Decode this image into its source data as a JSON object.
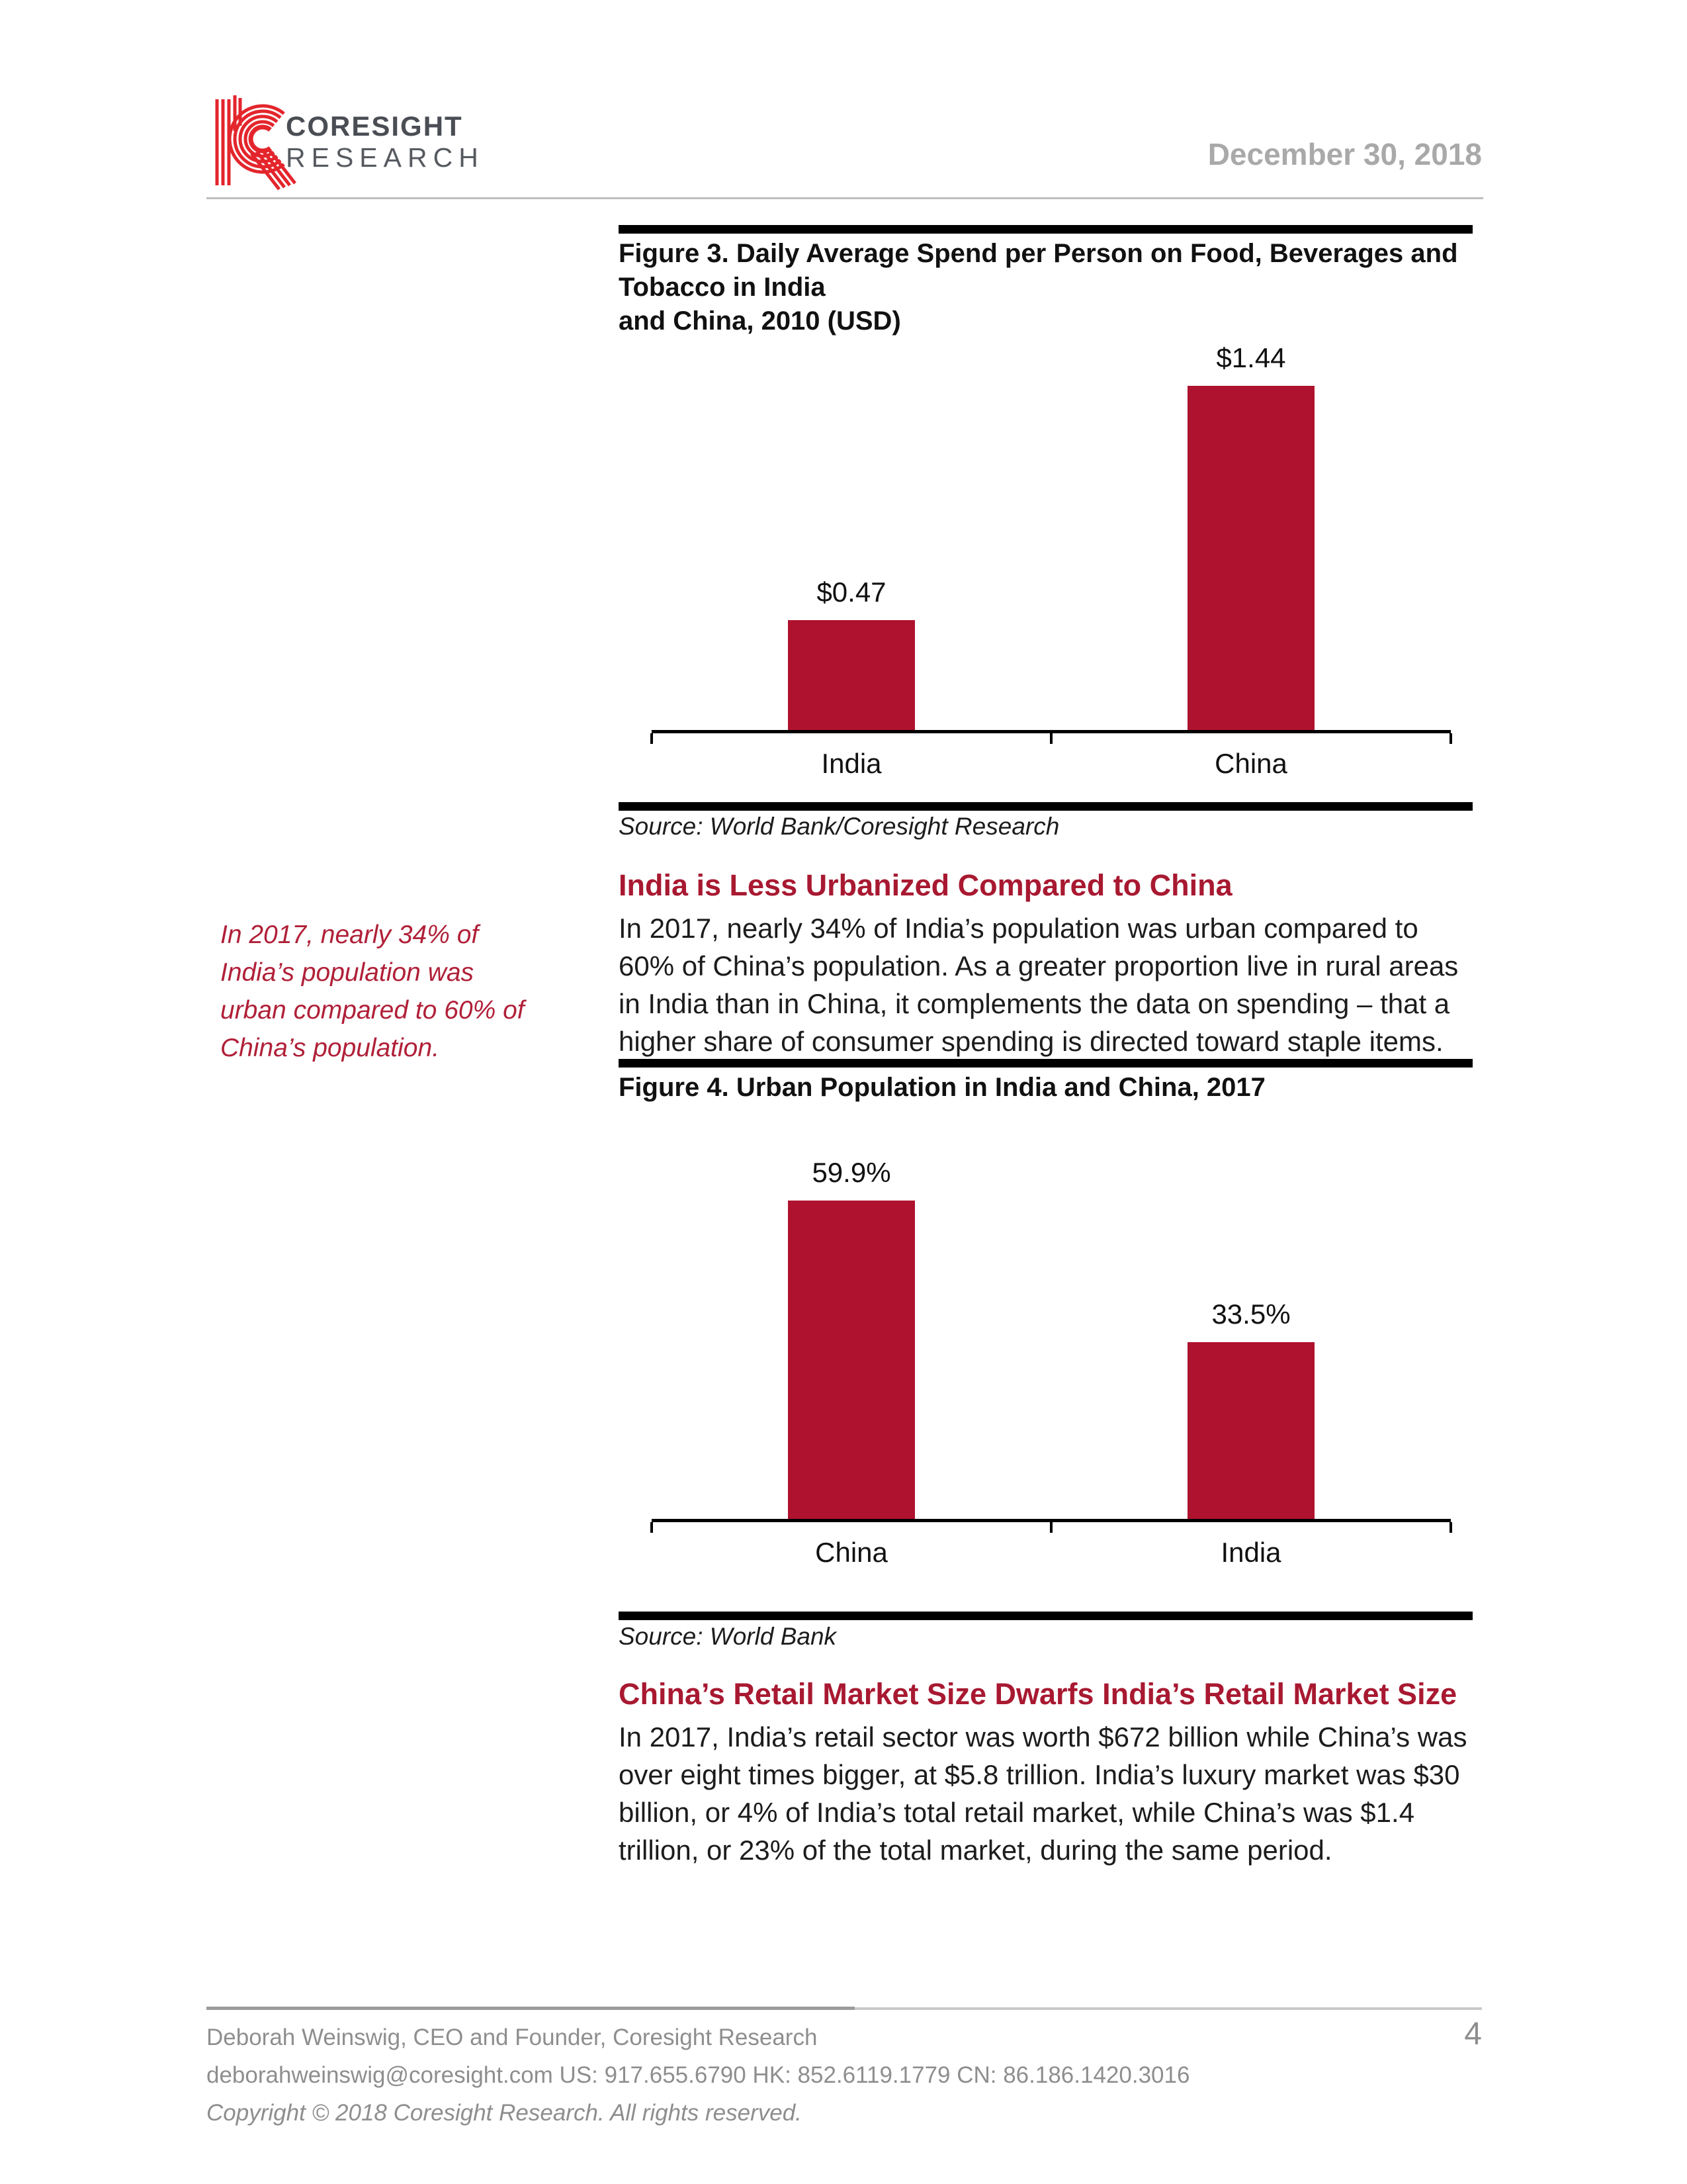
{
  "header": {
    "brand_line1": "CORESIGHT",
    "brand_line2": "RESEARCH",
    "date": "December 30, 2018"
  },
  "figure3": {
    "title_line1": "Figure 3. Daily Average Spend per Person on Food, Beverages and Tobacco in India",
    "title_line2": "and China, 2010  (USD)",
    "source": "Source: World Bank/Coresight Research"
  },
  "figure4": {
    "title": "Figure 4. Urban Population in India and China, 2017",
    "source": "Source: World Bank"
  },
  "chart_data": [
    {
      "type": "bar",
      "figure": "Figure 3",
      "title": "Daily Average Spend per Person on Food, Beverages and Tobacco in India and China, 2010 (USD)",
      "categories": [
        "India",
        "China"
      ],
      "values": [
        0.47,
        1.44
      ],
      "value_labels": [
        "$0.47",
        "$1.44"
      ],
      "unit": "USD per day",
      "ylim": [
        0,
        1.75
      ],
      "grid": false,
      "legend": "none",
      "bar_color": "#af122e",
      "source": "World Bank/Coresight Research"
    },
    {
      "type": "bar",
      "figure": "Figure 4",
      "title": "Urban Population in India and China, 2017",
      "categories": [
        "China",
        "India"
      ],
      "values": [
        59.9,
        33.5
      ],
      "value_labels": [
        "59.9%",
        "33.5%"
      ],
      "unit": "percent of population",
      "ylim": [
        0,
        74
      ],
      "grid": false,
      "legend": "none",
      "bar_color": "#af122e",
      "source": "World Bank"
    }
  ],
  "sections": [
    {
      "heading": "India is Less Urbanized Compared to China",
      "body": "In 2017, nearly 34% of India’s population was urban compared to 60% of China’s population. As a greater proportion live in rural areas in India than in China, it complements the data on spending – that a higher share of consumer spending is directed toward staple items."
    },
    {
      "heading": "China’s Retail Market Size Dwarfs India’s Retail Market Size",
      "body": "In 2017, India’s retail sector was worth $672 billion while China’s was over eight times bigger, at $5.8 trillion. India’s luxury market was $30 billion, or 4% of India’s total retail market, while China’s was $1.4 trillion, or 23% of the total market, during the same period."
    }
  ],
  "callout": "In 2017, nearly 34% of India’s population was urban compared to 60% of China’s population.",
  "footer": {
    "line1": "Deborah Weinswig, CEO and Founder, Coresight Research",
    "line2": "deborahweinswig@coresight.com US: 917.655.6790 HK: 852.6119.1779 CN: 86.186.1420.3016",
    "line3": "Copyright © 2018 Coresight Research. All rights reserved.",
    "page_number": "4"
  },
  "colors": {
    "accent_red": "#a81931",
    "bar_red": "#af122e",
    "logo_red": "#e4252c",
    "brand_gray": "#4a4e54",
    "date_gray": "#a9a9a9",
    "footer_gray": "#8e8e8e"
  }
}
